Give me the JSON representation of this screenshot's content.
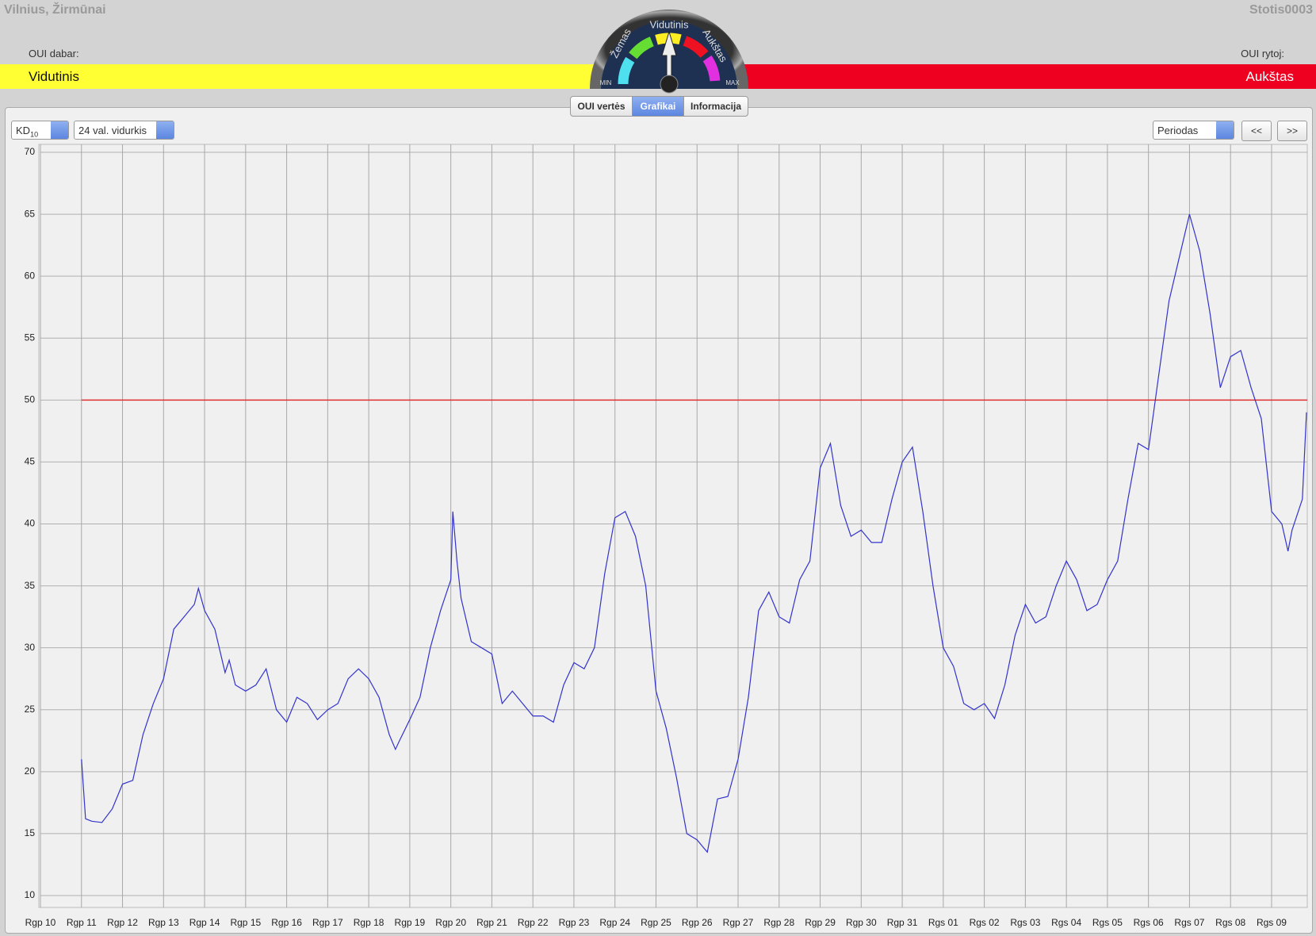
{
  "header": {
    "location": "Vilnius, Žirmūnai",
    "station": "Stotis0003",
    "oui_now_label": "OUI dabar:",
    "oui_now_value": "Vidutinis",
    "oui_tomorrow_label": "OUI rytoj:",
    "oui_tomorrow_value": "Aukštas"
  },
  "gauge": {
    "low": "Žemas",
    "medium": "Vidutinis",
    "high": "Aukštas",
    "min": "MIN",
    "max": "MAX"
  },
  "tabs": [
    "OUI vertės",
    "Grafikai",
    "Informacija"
  ],
  "controls": {
    "pollutant": "KD",
    "pollutant_sub": "10",
    "average": "24 val. vidurkis",
    "period": "Periodas",
    "prev": "<<",
    "next": ">>"
  },
  "chart_data": {
    "type": "line",
    "color": "#3333cc",
    "grid": true,
    "threshold": {
      "value": 50,
      "color": "#e03030"
    },
    "xlim": [
      0,
      30.87
    ],
    "ylim": [
      10,
      70
    ],
    "yticks": [
      10,
      15,
      20,
      25,
      30,
      35,
      40,
      45,
      50,
      55,
      60,
      65,
      70
    ],
    "xticks": [
      {
        "value": 0,
        "label": "Rgp 10"
      },
      {
        "value": 1,
        "label": "Rgp 11"
      },
      {
        "value": 2,
        "label": "Rgp 12"
      },
      {
        "value": 3,
        "label": "Rgp 13"
      },
      {
        "value": 4,
        "label": "Rgp 14"
      },
      {
        "value": 5,
        "label": "Rgp 15"
      },
      {
        "value": 6,
        "label": "Rgp 16"
      },
      {
        "value": 7,
        "label": "Rgp 17"
      },
      {
        "value": 8,
        "label": "Rgp 18"
      },
      {
        "value": 9,
        "label": "Rgp 19"
      },
      {
        "value": 10,
        "label": "Rgp 20"
      },
      {
        "value": 11,
        "label": "Rgp 21"
      },
      {
        "value": 12,
        "label": "Rgp 22"
      },
      {
        "value": 13,
        "label": "Rgp 23"
      },
      {
        "value": 14,
        "label": "Rgp 24"
      },
      {
        "value": 15,
        "label": "Rgp 25"
      },
      {
        "value": 16,
        "label": "Rgp 26"
      },
      {
        "value": 17,
        "label": "Rgp 27"
      },
      {
        "value": 18,
        "label": "Rgp 28"
      },
      {
        "value": 19,
        "label": "Rgp 29"
      },
      {
        "value": 20,
        "label": "Rgp 30"
      },
      {
        "value": 21,
        "label": "Rgp 31"
      },
      {
        "value": 22,
        "label": "Rgs 01"
      },
      {
        "value": 23,
        "label": "Rgs 02"
      },
      {
        "value": 24,
        "label": "Rgs 03"
      },
      {
        "value": 25,
        "label": "Rgs 04"
      },
      {
        "value": 26,
        "label": "Rgs 05"
      },
      {
        "value": 27,
        "label": "Rgs 06"
      },
      {
        "value": 28,
        "label": "Rgs 07"
      },
      {
        "value": 29,
        "label": "Rgs 08"
      },
      {
        "value": 30,
        "label": "Rgs 09"
      }
    ],
    "x": [
      1,
      1.1,
      1.25,
      1.5,
      1.75,
      2,
      2.25,
      2.5,
      2.75,
      3,
      3.25,
      3.5,
      3.75,
      3.85,
      4,
      4.25,
      4.5,
      4.6,
      4.75,
      5,
      5.25,
      5.5,
      5.75,
      6,
      6.25,
      6.5,
      6.75,
      7,
      7.25,
      7.5,
      7.75,
      8,
      8.25,
      8.5,
      8.65,
      8.75,
      9,
      9.25,
      9.5,
      9.75,
      10,
      10.05,
      10.15,
      10.25,
      10.5,
      10.75,
      11,
      11.25,
      11.5,
      11.75,
      12,
      12.25,
      12.5,
      12.75,
      13,
      13.25,
      13.5,
      13.75,
      14,
      14.25,
      14.5,
      14.75,
      15,
      15.25,
      15.5,
      15.75,
      16,
      16.25,
      16.5,
      16.75,
      17,
      17.25,
      17.5,
      17.75,
      18,
      18.25,
      18.5,
      18.75,
      19,
      19.25,
      19.5,
      19.75,
      20,
      20.25,
      20.5,
      20.75,
      21,
      21.25,
      21.5,
      21.75,
      22,
      22.25,
      22.5,
      22.75,
      23,
      23.25,
      23.5,
      23.75,
      24,
      24.25,
      24.5,
      24.75,
      25,
      25.25,
      25.5,
      25.75,
      26,
      26.25,
      26.5,
      26.75,
      27,
      27.25,
      27.5,
      27.75,
      28,
      28.25,
      28.5,
      28.75,
      29,
      29.25,
      29.5,
      29.75,
      30,
      30.25,
      30.4,
      30.5,
      30.75,
      30.85
    ],
    "values": [
      21,
      16.2,
      16,
      15.9,
      17,
      19,
      19.3,
      23,
      25.5,
      27.5,
      31.5,
      32.5,
      33.5,
      34.8,
      33,
      31.5,
      28,
      29,
      27,
      26.5,
      27,
      28.3,
      25,
      24,
      26,
      25.5,
      24.2,
      25,
      25.5,
      27.5,
      28.3,
      27.5,
      26,
      23,
      21.8,
      22.5,
      24.2,
      26,
      30,
      33,
      35.5,
      41,
      37,
      34,
      30.5,
      30,
      29.5,
      25.5,
      26.5,
      25.5,
      24.5,
      24.5,
      24,
      27,
      28.8,
      28.3,
      30,
      36,
      40.5,
      41,
      39,
      35,
      26.5,
      23.5,
      19.5,
      15,
      14.5,
      13.5,
      17.8,
      18,
      21,
      26,
      33,
      34.5,
      32.5,
      32,
      35.5,
      37,
      44.5,
      46.5,
      41.5,
      39,
      39.5,
      38.5,
      38.5,
      42,
      45,
      46.2,
      41,
      35,
      30,
      28.5,
      25.5,
      25,
      25.5,
      24.3,
      27,
      31,
      33.5,
      32,
      32.5,
      35,
      37,
      35.5,
      33,
      33.5,
      35.5,
      37,
      42,
      46.5,
      46,
      52,
      58,
      61.5,
      65,
      62,
      57,
      51,
      53.5,
      54,
      51,
      48.5,
      41,
      40,
      37.8,
      39.5,
      42,
      49
    ]
  }
}
